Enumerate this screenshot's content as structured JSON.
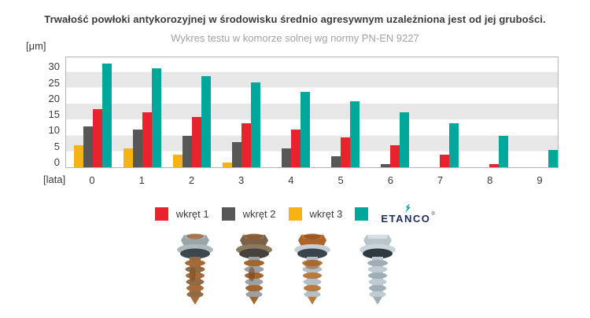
{
  "header": {
    "title": "Trwałość powłoki antykorozyjnej w środowisku średnio agresywnym uzależniona jest od jej grubości.",
    "subtitle": "Wykres testu w komorze solnej wg normy PN-EN 9227"
  },
  "chart_data": {
    "type": "bar",
    "title": "Trwałość powłoki antykorozyjnej w środowisku średnio agresywnym uzależniona jest od jej grubości.",
    "subtitle": "Wykres testu w komorze solnej wg normy PN-EN 9227",
    "y_axis_unit_label": "[μm]",
    "x_axis_unit_label": "[lata]",
    "categories": [
      "0",
      "1",
      "2",
      "3",
      "4",
      "5",
      "6",
      "7",
      "8",
      "9"
    ],
    "y_ticks": [
      0,
      5,
      10,
      15,
      20,
      25,
      30
    ],
    "ylim": [
      0,
      35
    ],
    "grid": "horizontal-stripes-every-5-units",
    "legend_position": "bottom",
    "stripe_color": "#e7e7e7",
    "series": [
      {
        "name": "wkręt 3",
        "color": "#f7b213",
        "values": [
          7,
          6,
          4,
          1.5,
          0,
          0,
          0,
          0,
          0,
          0
        ]
      },
      {
        "name": "wkręt 2",
        "color": "#575756",
        "values": [
          13,
          12,
          10,
          8,
          6,
          3.5,
          1,
          0,
          0,
          0
        ]
      },
      {
        "name": "wkręt 1",
        "color": "#e8232d",
        "values": [
          18.5,
          17.5,
          16,
          14,
          12,
          9.5,
          7,
          4,
          1,
          0
        ]
      },
      {
        "name": "ETANCO",
        "color": "#00a79b",
        "values": [
          33,
          31.5,
          29,
          27,
          24,
          21,
          17.5,
          14,
          10,
          5.5
        ]
      }
    ],
    "legend": [
      {
        "label": "wkręt 1",
        "color": "#e8232d",
        "logo": false
      },
      {
        "label": "wkręt 2",
        "color": "#575756",
        "logo": false
      },
      {
        "label": "wkręt 3",
        "color": "#f7b213",
        "logo": false
      },
      {
        "label": "ETANCO",
        "color": "#00a79b",
        "logo": true
      }
    ]
  },
  "brand": {
    "name": "ETANCO",
    "registered_mark": "®",
    "text_color": "#1e2c5c",
    "flash_color": "#00a79b"
  },
  "photos": {
    "screw_icons": [
      "screw-photo-rusted-1",
      "screw-photo-rusted-2",
      "screw-photo-rusted-3",
      "screw-photo-clean"
    ]
  }
}
